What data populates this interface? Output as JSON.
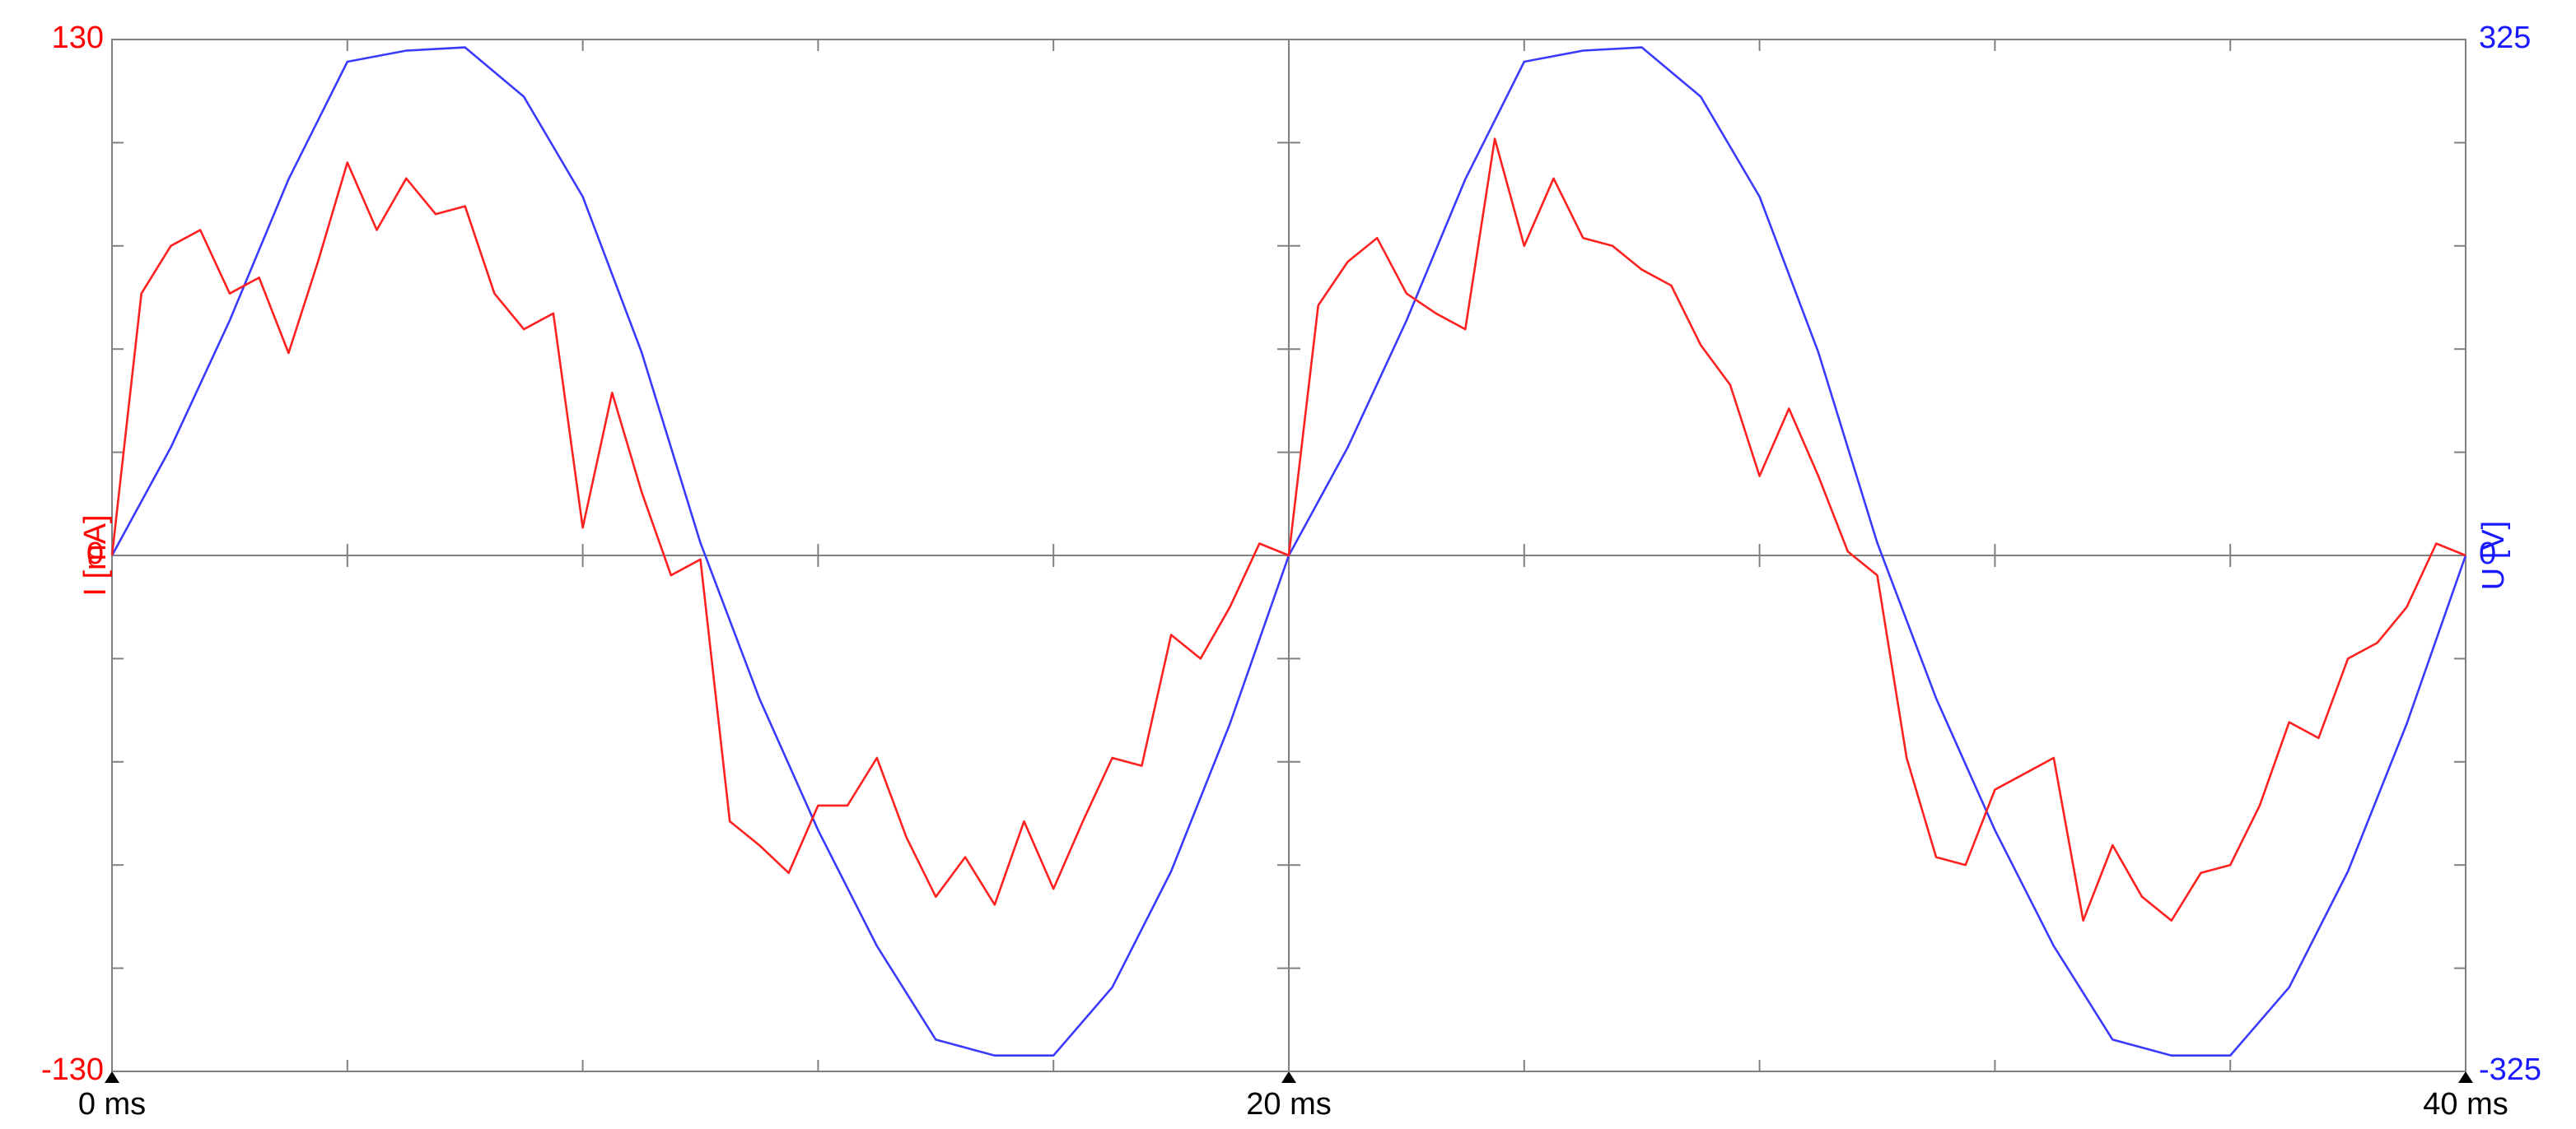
{
  "chart_data": {
    "type": "line",
    "xlim": [
      0,
      40
    ],
    "xticks": [
      {
        "value": 0,
        "label": "0 ms"
      },
      {
        "value": 20,
        "label": "20 ms"
      },
      {
        "value": 40,
        "label": "40 ms"
      }
    ],
    "x_minor_ticks": [
      4,
      8,
      12,
      16,
      24,
      28,
      32,
      36
    ],
    "ylim": [
      -130,
      130
    ],
    "yticks": [
      -130,
      0,
      130
    ],
    "y_minor_ticks": [
      -104,
      -78,
      -52,
      -26,
      26,
      52,
      78,
      104
    ],
    "ylabel": "I [mA]",
    "ylabel_color": "#ff0000",
    "y2lim": [
      -325,
      325
    ],
    "y2ticks": [
      -325,
      0,
      325
    ],
    "y2label": "U [V]",
    "y2label_color": "#1a1aff",
    "series": [
      {
        "name": "I",
        "color": "#ff2020",
        "axis": "y",
        "x": [
          0,
          0.5,
          1,
          1.5,
          2,
          2.5,
          3,
          3.5,
          4,
          4.5,
          5,
          5.5,
          6,
          6.5,
          7,
          7.5,
          8,
          8.5,
          9,
          9.5,
          10,
          10.5,
          11,
          11.5,
          12,
          12.5,
          13,
          13.5,
          14,
          14.5,
          15,
          15.5,
          16,
          16.5,
          17,
          17.5,
          18,
          18.5,
          19,
          19.5,
          20,
          20.5,
          21,
          21.5,
          22,
          22.5,
          23,
          23.5,
          24,
          24.5,
          25,
          25.5,
          26,
          26.5,
          27,
          27.5,
          28,
          28.5,
          29,
          29.5,
          30,
          30.5,
          31,
          31.5,
          32,
          32.5,
          33,
          33.5,
          34,
          34.5,
          35,
          35.5,
          36,
          36.5,
          37,
          37.5,
          38,
          38.5,
          39,
          39.5,
          40
        ],
        "values": [
          0,
          66,
          78,
          82,
          66,
          70,
          51,
          74,
          99,
          82,
          95,
          86,
          88,
          66,
          57,
          61,
          7,
          41,
          16,
          -5,
          -1,
          -67,
          -73,
          -80,
          -63,
          -63,
          -51,
          -71,
          -86,
          -76,
          -88,
          -67,
          -84,
          -67,
          -51,
          -53,
          -20,
          -26,
          -13,
          3,
          0,
          63,
          74,
          80,
          66,
          61,
          57,
          105,
          78,
          95,
          80,
          78,
          72,
          68,
          53,
          43,
          20,
          37,
          20,
          1,
          -5,
          -51,
          -76,
          -78,
          -59,
          -55,
          -51,
          -92,
          -73,
          -86,
          -92,
          -80,
          -78,
          -63,
          -42,
          -46,
          -26,
          -22,
          -13,
          3,
          0
        ]
      },
      {
        "name": "U",
        "color": "#3a3aff",
        "axis": "y2",
        "x": [
          0,
          1,
          2,
          3,
          4,
          5,
          6,
          7,
          8,
          9,
          10,
          11,
          12,
          13,
          14,
          15,
          16,
          17,
          18,
          19,
          20,
          21,
          22,
          23,
          24,
          25,
          26,
          27,
          28,
          29,
          30,
          31,
          32,
          33,
          34,
          35,
          36,
          37,
          38,
          39,
          40
        ],
        "values": [
          0,
          68,
          148,
          237,
          311,
          318,
          320,
          289,
          226,
          128,
          8,
          -90,
          -173,
          -246,
          -305,
          -315,
          -315,
          -272,
          -199,
          -106,
          0,
          68,
          148,
          237,
          311,
          318,
          320,
          289,
          226,
          128,
          8,
          -90,
          -173,
          -246,
          -305,
          -315,
          -315,
          -272,
          -199,
          -106,
          0
        ]
      }
    ]
  }
}
